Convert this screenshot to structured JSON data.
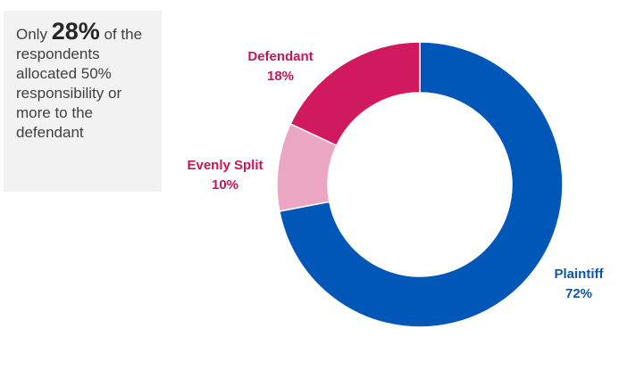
{
  "callout": {
    "prefix": "Only",
    "highlight": "28%",
    "suffix": "of the respondents allocated 50% responsibility or more to the defendant"
  },
  "chart_data": {
    "type": "pie",
    "donut": true,
    "categories": [
      "Plaintiff",
      "Evenly Split",
      "Defendant"
    ],
    "values": [
      72,
      10,
      18
    ],
    "value_labels": [
      "72%",
      "10%",
      "18%"
    ],
    "colors": [
      "#0057b8",
      "#eba6c4",
      "#d1195f"
    ],
    "label_colors": [
      "#0d56b0",
      "#c21858",
      "#c21858"
    ],
    "start_at": "12 o'clock",
    "direction": "clockwise"
  }
}
